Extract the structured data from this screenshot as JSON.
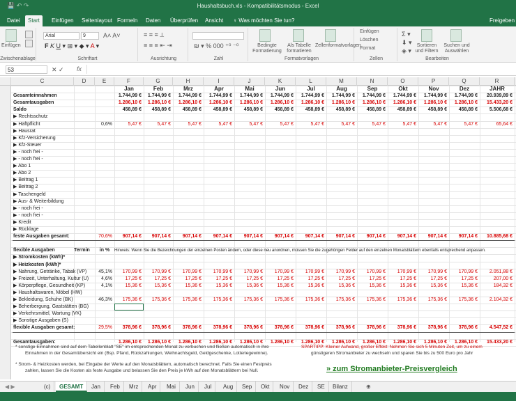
{
  "title": {
    "text": "Haushaltsbuch.xls - Kompatibilitätsmodus - Excel"
  },
  "ribbon_tabs": [
    "Datei",
    "Start",
    "Einfügen",
    "Seitenlayout",
    "Formeln",
    "Daten",
    "Überprüfen",
    "Ansicht"
  ],
  "tell_me": "Was möchten Sie tun?",
  "share": "Freigeben",
  "ribbon": {
    "paste": "Einfügen",
    "clipboard": "Zwischenablage",
    "font_name": "Arial",
    "font_size": "9",
    "font_group": "Schriftart",
    "align_group": "Ausrichtung",
    "number_format": "",
    "number_group": "Zahl",
    "cond_format": "Bedingte Formatierung",
    "as_table": "Als Tabelle formatieren",
    "cell_styles": "Zellenformatvorlagen",
    "styles_group": "Formatvorlagen",
    "insert": "Einfügen",
    "delete": "Löschen",
    "format": "Format",
    "cells_group": "Zellen",
    "sort": "Sortieren und Filtern",
    "find": "Suchen und Auswählen",
    "edit_group": "Bearbeiten"
  },
  "name_box": "53",
  "fx": "fx",
  "columns": [
    "C",
    "D",
    "E",
    "F",
    "G",
    "H",
    "I",
    "J",
    "K",
    "L",
    "M",
    "N",
    "O",
    "P",
    "Q",
    "R"
  ],
  "months": [
    "Jan",
    "Feb",
    "Mrz",
    "Apr",
    "Mai",
    "Jun",
    "Jul",
    "Aug",
    "Sep",
    "Okt",
    "Nov",
    "Dez",
    "JAHR"
  ],
  "summary": [
    {
      "label": "Gesamteinnahmen",
      "vals": [
        "1.744,99 €",
        "1.744,99 €",
        "1.744,99 €",
        "1.744,99 €",
        "1.744,99 €",
        "1.744,99 €",
        "1.744,99 €",
        "1.744,99 €",
        "1.744,99 €",
        "1.744,99 €",
        "1.744,99 €",
        "1.744,99 €",
        "20.939,89 €"
      ]
    },
    {
      "label": "Gesamtausgaben",
      "vals": [
        "1.286,10 €",
        "1.286,10 €",
        "1.286,10 €",
        "1.286,10 €",
        "1.286,10 €",
        "1.286,10 €",
        "1.286,10 €",
        "1.286,10 €",
        "1.286,10 €",
        "1.286,10 €",
        "1.286,10 €",
        "1.286,10 €",
        "15.433,20 €"
      ],
      "red": true
    },
    {
      "label": "Saldo",
      "vals": [
        "458,89 €",
        "458,89 €",
        "458,89 €",
        "458,89 €",
        "458,89 €",
        "458,89 €",
        "458,89 €",
        "458,89 €",
        "458,89 €",
        "458,89 €",
        "458,89 €",
        "458,89 €",
        "5.506,68 €"
      ]
    }
  ],
  "fixed": [
    {
      "label": "▶  Rechtsschutz"
    },
    {
      "label": "▶  Haftpflicht",
      "pct": "0,6%",
      "vals": [
        "5,47 €",
        "5,47 €",
        "5,47 €",
        "5,47 €",
        "5,47 €",
        "5,47 €",
        "5,47 €",
        "5,47 €",
        "5,47 €",
        "5,47 €",
        "5,47 €",
        "5,47 €",
        "65,64 €"
      ]
    },
    {
      "label": "▶  Hausrat"
    },
    {
      "label": "▶  Kfz-Versicherung"
    },
    {
      "label": "▶  Kfz-Steuer"
    },
    {
      "label": "▶   - noch frei -"
    },
    {
      "label": "▶   - noch frei -"
    },
    {
      "label": "▶  Abo 1"
    },
    {
      "label": "▶  Abo 2"
    },
    {
      "label": "▶  Beitrag 1"
    },
    {
      "label": "▶  Beitrag 2"
    },
    {
      "label": "▶  Taschengeld"
    },
    {
      "label": "▶  Aus- & Weiterbildung"
    },
    {
      "label": "▶   - noch frei -"
    },
    {
      "label": "▶   - noch frei -"
    },
    {
      "label": "▶  Kredit"
    },
    {
      "label": "▶  Rücklage"
    }
  ],
  "fixed_total": {
    "label": "feste Ausgaben gesamt:",
    "pct": "70,6%",
    "vals": [
      "907,14 €",
      "907,14 €",
      "907,14 €",
      "907,14 €",
      "907,14 €",
      "907,14 €",
      "907,14 €",
      "907,14 €",
      "907,14 €",
      "907,14 €",
      "907,14 €",
      "907,14 €",
      "10.885,68 €"
    ]
  },
  "flex_header": {
    "label": "flexible Ausgaben",
    "termin": "Termin",
    "pct": "in %",
    "hint": "Hinweis: Wenn Sie die Bezeichnungen der einzelnen Posten ändern, oder diese neu anordnen, müssen Sie die zugehörigen Felder auf den einzelnen Monatsblättern ebenfalls entsprechend anpassen."
  },
  "flex": [
    {
      "label": "▶  Stromkosten (kWh)*",
      "bold": true
    },
    {
      "label": "▶  Heizkosten (kWh)*",
      "bold": true
    },
    {
      "label": "▶  Nahrung, Getränke, Tabak (VP)",
      "pct": "45,1%",
      "vals": [
        "170,99 €",
        "170,99 €",
        "170,99 €",
        "170,99 €",
        "170,99 €",
        "170,99 €",
        "170,99 €",
        "170,99 €",
        "170,99 €",
        "170,99 €",
        "170,99 €",
        "170,99 €",
        "2.051,88 €"
      ]
    },
    {
      "label": "▶  Freizeit, Unterhaltung, Kultur (U)",
      "pct": "4,6%",
      "vals": [
        "17,25 €",
        "17,25 €",
        "17,25 €",
        "17,25 €",
        "17,25 €",
        "17,25 €",
        "17,25 €",
        "17,25 €",
        "17,25 €",
        "17,25 €",
        "17,25 €",
        "17,25 €",
        "207,00 €"
      ]
    },
    {
      "label": "▶  Körperpflege, Gesundheit (KP)",
      "pct": "4,1%",
      "vals": [
        "15,36 €",
        "15,36 €",
        "15,36 €",
        "15,36 €",
        "15,36 €",
        "15,36 €",
        "15,36 €",
        "15,36 €",
        "15,36 €",
        "15,36 €",
        "15,36 €",
        "15,36 €",
        "184,32 €"
      ]
    },
    {
      "label": "▶  Haushaltswaren, Möbel (HW)"
    },
    {
      "label": "▶  Bekleidung, Schuhe (BK)",
      "pct": "46,3%",
      "vals": [
        "175,36 €",
        "175,36 €",
        "175,36 €",
        "175,36 €",
        "175,36 €",
        "175,36 €",
        "175,36 €",
        "175,36 €",
        "175,36 €",
        "175,36 €",
        "175,36 €",
        "175,36 €",
        "2.104,32 €"
      ]
    },
    {
      "label": "▶  Beherbergung, Gaststätten (BG)"
    },
    {
      "label": "▶  Verkehrsmittel, Wartung (VK)"
    },
    {
      "label": "▶  Sonstige Ausgaben (S)"
    }
  ],
  "flex_total": {
    "label": "flexible Ausgaben gesamt:",
    "pct": "29,5%",
    "vals": [
      "378,96 €",
      "378,96 €",
      "378,96 €",
      "378,96 €",
      "378,96 €",
      "378,96 €",
      "378,96 €",
      "378,96 €",
      "378,96 €",
      "378,96 €",
      "378,96 €",
      "378,96 €",
      "4.547,52 €"
    ]
  },
  "grand_total": {
    "label": "Gesamtausgaben:",
    "vals": [
      "1.286,10 €",
      "1.286,10 €",
      "1.286,10 €",
      "1.286,10 €",
      "1.286,10 €",
      "1.286,10 €",
      "1.286,10 €",
      "1.286,10 €",
      "1.286,10 €",
      "1.286,10 €",
      "1.286,10 €",
      "1.286,10 €",
      "15.433,20 €"
    ]
  },
  "notes": {
    "n1_a": "* sonstige Einnahmen sind auf dem Tabellenblatt \"SE\" im entsprechenden Monat zu verbuchen und fließen automatisch in ihre",
    "n1_b": "Einnahmen in der Gesamtübersicht ein (Bsp. Pfand, Rückzahlungen, Weihnachtsgeld, Geldgeschenke, Lotteriegewinne).",
    "n2_a": "*  Strom- & Heizkosten werden, bei Eingabe der Werte auf den Monatsblättern, automatisch berechnet. Falls Sie einen Festpreis",
    "n2_b": "zahlen, lassen Sie die Kosten als feste Ausgabe und belassen Sie den Preis je kWh auf den Monatsblättern bei Null.",
    "tip_a": "SPARTIPP: Kleiner Aufwand, großer Effekt: Nehmen Sie sich 5 Minuten Zeit, um zu einem",
    "tip_b": "günstigeren Stromanbieter zu wechseln und sparen Sie bis zu 500 Euro pro Jahr",
    "link": "» zum Stromanbieter-Preisvergleich"
  },
  "sheets": [
    "(c)",
    "GESAMT",
    "Jan",
    "Feb",
    "Mrz",
    "Apr",
    "Mai",
    "Jun",
    "Jul",
    "Aug",
    "Sep",
    "Okt",
    "Nov",
    "Dez",
    "SE",
    "Bilanz"
  ],
  "colors": {
    "excel_green": "#217346",
    "red": "#d60000",
    "link": "#1f7a1f"
  }
}
